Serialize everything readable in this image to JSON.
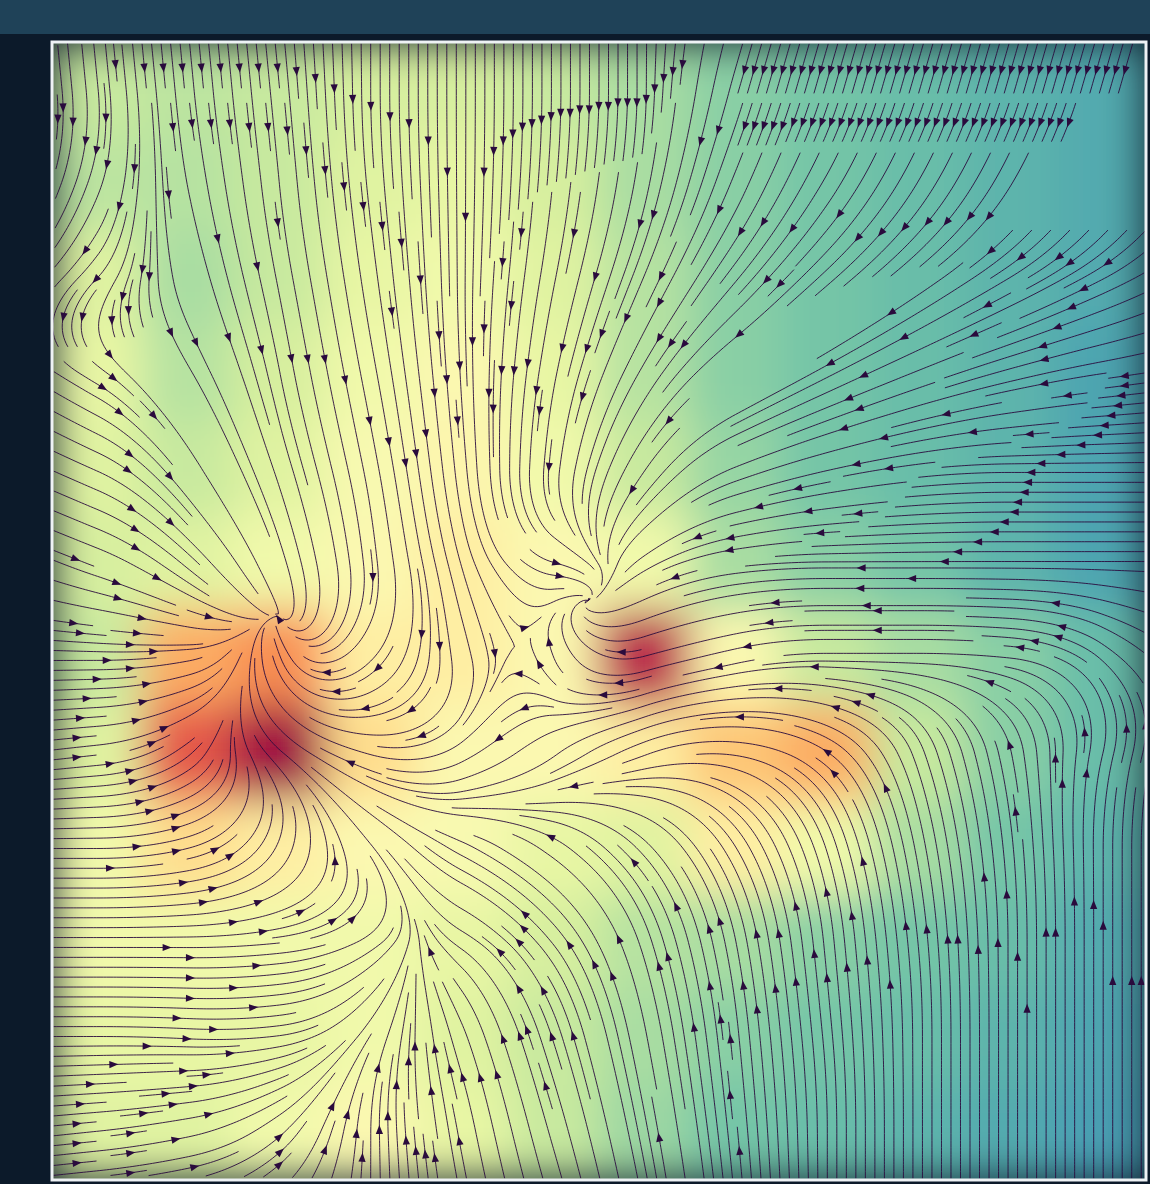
{
  "chart_data": {
    "type": "streamplot",
    "tick_labels": false,
    "xlim": [
      0,
      12
    ],
    "ylim": [
      0,
      12
    ],
    "zlim": [
      0,
      1
    ],
    "x": [
      0.5,
      1.5,
      2.5,
      3.5,
      4.5,
      5.5,
      6.5,
      7.5,
      8.5,
      9.5,
      10.5,
      11.5
    ],
    "y": [
      11.5,
      10.5,
      9.5,
      8.5,
      7.5,
      6.5,
      5.5,
      4.5,
      3.5,
      2.5,
      1.5,
      0.5
    ],
    "cells": [
      [
        0.35,
        0.33,
        0.35,
        0.38,
        0.38,
        0.35,
        0.3,
        0.25,
        0.22,
        0.2,
        0.18,
        0.16
      ],
      [
        0.33,
        0.32,
        0.35,
        0.4,
        0.42,
        0.38,
        0.3,
        0.25,
        0.22,
        0.2,
        0.18,
        0.16
      ],
      [
        0.4,
        0.3,
        0.35,
        0.42,
        0.45,
        0.4,
        0.32,
        0.25,
        0.22,
        0.2,
        0.18,
        0.16
      ],
      [
        0.42,
        0.32,
        0.38,
        0.45,
        0.5,
        0.42,
        0.32,
        0.25,
        0.22,
        0.2,
        0.18,
        0.15
      ],
      [
        0.4,
        0.35,
        0.4,
        0.48,
        0.52,
        0.45,
        0.35,
        0.27,
        0.22,
        0.2,
        0.18,
        0.15
      ],
      [
        0.38,
        0.4,
        0.45,
        0.5,
        0.55,
        0.5,
        0.45,
        0.3,
        0.25,
        0.22,
        0.18,
        0.15
      ],
      [
        0.35,
        0.7,
        0.75,
        0.55,
        0.55,
        0.5,
        0.95,
        0.5,
        0.35,
        0.3,
        0.25,
        0.2
      ],
      [
        0.4,
        0.85,
        1.0,
        0.6,
        0.5,
        0.5,
        0.55,
        0.65,
        0.7,
        0.35,
        0.25,
        0.2
      ],
      [
        0.45,
        0.6,
        0.55,
        0.5,
        0.48,
        0.42,
        0.4,
        0.55,
        0.45,
        0.3,
        0.22,
        0.18
      ],
      [
        0.45,
        0.45,
        0.45,
        0.45,
        0.42,
        0.38,
        0.32,
        0.3,
        0.25,
        0.22,
        0.2,
        0.16
      ],
      [
        0.42,
        0.42,
        0.42,
        0.45,
        0.4,
        0.35,
        0.3,
        0.25,
        0.22,
        0.2,
        0.18,
        0.15
      ],
      [
        0.4,
        0.4,
        0.45,
        0.5,
        0.42,
        0.35,
        0.28,
        0.22,
        0.2,
        0.18,
        0.16,
        0.14
      ]
    ],
    "u": [
      [
        0.1,
        0.1,
        0.1,
        0,
        0,
        0,
        0,
        -0.3,
        -0.3,
        -0.3,
        -0.3,
        -0.3
      ],
      [
        -0.3,
        0.2,
        0.1,
        0.1,
        0,
        -0.1,
        -0.2,
        -0.4,
        -0.5,
        -0.5,
        -0.5,
        -0.5
      ],
      [
        -0.5,
        0.3,
        0.2,
        0.15,
        0,
        -0.2,
        -0.4,
        -0.6,
        -0.7,
        -0.7,
        -0.7,
        -0.6
      ],
      [
        0.5,
        0.5,
        0.2,
        0.2,
        0.05,
        -0.2,
        -0.5,
        -0.8,
        -0.8,
        -0.8,
        -0.8,
        -0.7
      ],
      [
        0.7,
        0.5,
        0.3,
        0.2,
        0.1,
        -0.1,
        -0.5,
        -0.8,
        -0.9,
        -0.9,
        -0.9,
        -0.8
      ],
      [
        0.8,
        0.6,
        0.2,
        0.1,
        0.3,
        0.8,
        -0.5,
        -0.9,
        -1,
        -1,
        -1,
        -1
      ],
      [
        0.9,
        0.6,
        -0.2,
        -0.6,
        0.2,
        -0.3,
        -0.8,
        -0.9,
        -1,
        -1,
        -1,
        -0.6
      ],
      [
        0.9,
        0.5,
        -0.6,
        -0.8,
        -0.7,
        -0.7,
        -0.8,
        -0.8,
        -0.6,
        -0.3,
        -0.2,
        0.2
      ],
      [
        1,
        0.8,
        0.3,
        -0.4,
        -0.6,
        -0.6,
        -0.6,
        -0.5,
        -0.3,
        -0.2,
        -0.1,
        0
      ],
      [
        1,
        1,
        1,
        0.5,
        -0.5,
        -0.5,
        -0.3,
        -0.2,
        -0.1,
        -0.1,
        0,
        0
      ],
      [
        1,
        1,
        0.8,
        0.3,
        -0.3,
        -0.3,
        -0.2,
        -0.1,
        -0.1,
        0,
        0,
        0
      ],
      [
        1,
        1,
        0.6,
        0,
        -0.2,
        -0.3,
        -0.2,
        -0.1,
        0,
        0,
        0,
        0
      ]
    ],
    "v": [
      [
        -1,
        -1,
        -1,
        -1,
        -1,
        -1,
        -1,
        -1,
        -1,
        -1,
        -1,
        -1
      ],
      [
        -0.8,
        -1,
        -1,
        -1,
        -1,
        -1,
        -1,
        -0.9,
        -0.8,
        -0.8,
        -0.8,
        -0.8
      ],
      [
        -0.5,
        -0.9,
        -1,
        -1,
        -1,
        -1,
        -0.9,
        -0.7,
        -0.6,
        -0.5,
        -0.4,
        -0.3
      ],
      [
        -0.3,
        -0.8,
        -1,
        -1,
        -1,
        -1,
        -0.8,
        -0.5,
        -0.4,
        -0.3,
        -0.2,
        -0.1
      ],
      [
        -0.3,
        -0.7,
        -0.9,
        -1,
        -1,
        -1,
        -0.7,
        -0.3,
        -0.2,
        -0.1,
        0,
        0
      ],
      [
        -0.3,
        -0.5,
        -0.6,
        -1,
        -1,
        -0.2,
        -0.3,
        -0.1,
        0,
        0,
        0,
        0
      ],
      [
        0,
        0.1,
        0.5,
        -0.6,
        -0.8,
        0.7,
        -0.2,
        -0.2,
        0,
        0,
        0.1,
        0.5
      ],
      [
        0.1,
        0.4,
        0.5,
        0.2,
        -0.4,
        -0.5,
        -0.3,
        0.1,
        0.4,
        0.8,
        0.9,
        0.8
      ],
      [
        0,
        0.2,
        0.6,
        0.5,
        0.3,
        0.4,
        0.6,
        0.8,
        0.9,
        1,
        1,
        1
      ],
      [
        0,
        0,
        0.1,
        0.3,
        0.3,
        0.6,
        0.9,
        1,
        1,
        1,
        1,
        1
      ],
      [
        0,
        -0.05,
        0.1,
        0.5,
        0.8,
        0.9,
        1,
        1,
        1,
        1,
        1,
        1
      ],
      [
        0.1,
        0.2,
        0.5,
        1,
        1,
        1,
        1,
        1,
        1,
        1,
        1,
        1
      ]
    ]
  }
}
